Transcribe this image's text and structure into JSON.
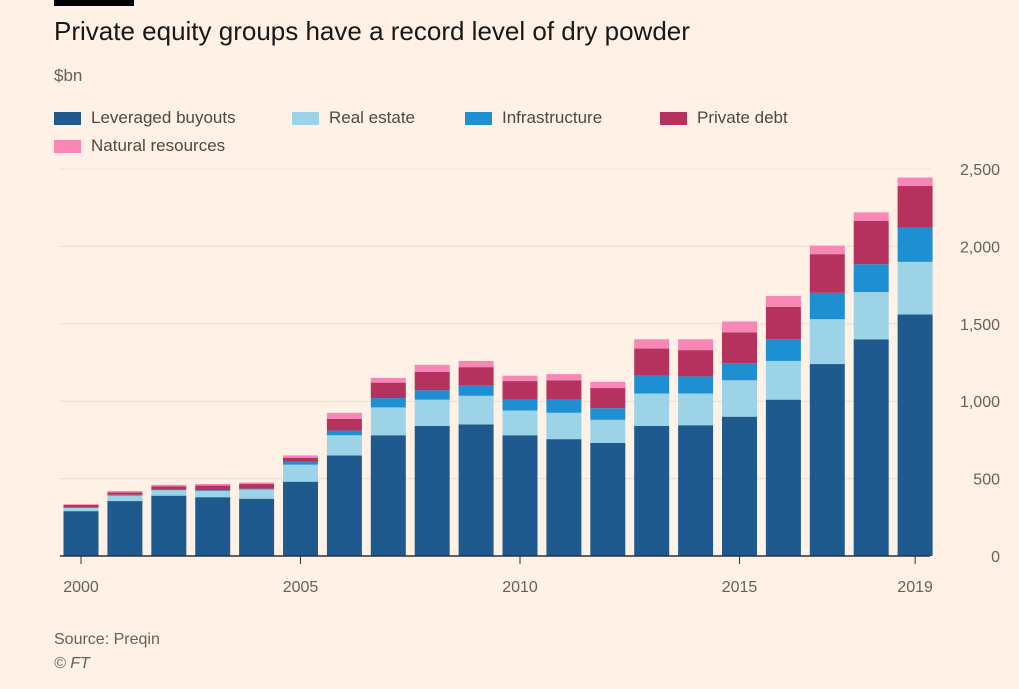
{
  "title": "Private equity groups have a record level of dry powder",
  "unit": "$bn",
  "source": "Source: Preqin",
  "credit": "© FT",
  "colors": {
    "background": "#fff1e5",
    "gridline": "#e9ddd2",
    "axis": "#66605c"
  },
  "chart_data": {
    "type": "bar",
    "stacked": true,
    "title": "Private equity groups have a record level of dry powder",
    "ylabel": "$bn",
    "xlabel": "",
    "ylim": [
      0,
      2500
    ],
    "yticks": [
      0,
      500,
      1000,
      1500,
      2000,
      2500
    ],
    "ytick_labels": [
      "0",
      "500",
      "1,000",
      "1,500",
      "2,000",
      "2,500"
    ],
    "xtick_labels": [
      "2000",
      "2005",
      "2010",
      "2015",
      "2019"
    ],
    "y_axis_position": "right",
    "grid": true,
    "legend_position": "top-left",
    "categories": [
      "2000",
      "2001",
      "2002",
      "2003",
      "2004",
      "2005",
      "2006",
      "2007",
      "2008",
      "2009",
      "2010",
      "2011",
      "2012",
      "2013",
      "2014",
      "2015",
      "2016",
      "2017",
      "2018",
      "2019"
    ],
    "series": [
      {
        "name": "Leveraged buyouts",
        "color": "#1f5a8f",
        "values": [
          290,
          355,
          390,
          380,
          370,
          480,
          650,
          780,
          840,
          850,
          780,
          755,
          730,
          840,
          845,
          900,
          1010,
          1240,
          1400,
          1560
        ]
      },
      {
        "name": "Real estate",
        "color": "#9dd3e6",
        "values": [
          20,
          35,
          35,
          40,
          60,
          110,
          130,
          180,
          170,
          185,
          160,
          170,
          150,
          210,
          205,
          235,
          250,
          290,
          305,
          340
        ]
      },
      {
        "name": "Infrastructure",
        "color": "#1e8fd1",
        "values": [
          5,
          5,
          5,
          5,
          5,
          20,
          30,
          60,
          60,
          65,
          70,
          85,
          75,
          115,
          110,
          110,
          140,
          170,
          180,
          220
        ]
      },
      {
        "name": "Private debt",
        "color": "#b5325f",
        "values": [
          15,
          15,
          20,
          30,
          30,
          25,
          75,
          100,
          120,
          120,
          120,
          125,
          130,
          175,
          170,
          200,
          210,
          250,
          280,
          270
        ]
      },
      {
        "name": "Natural resources",
        "color": "#f987b5",
        "values": [
          5,
          10,
          10,
          10,
          10,
          15,
          40,
          30,
          45,
          40,
          35,
          40,
          40,
          60,
          70,
          70,
          70,
          55,
          55,
          55
        ]
      }
    ]
  }
}
